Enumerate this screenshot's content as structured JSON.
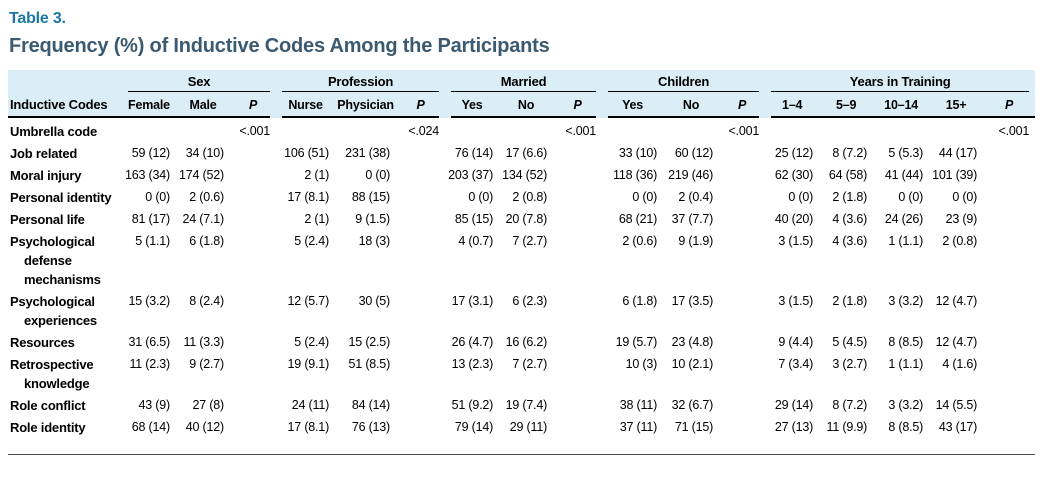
{
  "table_label": "Table 3.",
  "title": "Frequency (%) of Inductive Codes Among the Participants",
  "colors": {
    "table_label": "#1E78A7",
    "title": "#3A5A72",
    "header_band": "#DBEDF7",
    "rule": "#000000"
  },
  "table": {
    "row_header": "Inductive Codes",
    "groups": [
      {
        "label": "Sex",
        "cols": [
          "Female",
          "Male",
          "P"
        ]
      },
      {
        "label": "Profession",
        "cols": [
          "Nurse",
          "Physician",
          "P"
        ]
      },
      {
        "label": "Married",
        "cols": [
          "Yes",
          "No",
          "P"
        ]
      },
      {
        "label": "Children",
        "cols": [
          "Yes",
          "No",
          "P"
        ]
      },
      {
        "label": "Years in Training",
        "cols": [
          "1–4",
          "5–9",
          "10–14",
          "15+",
          "P"
        ]
      }
    ],
    "rows": [
      {
        "label": "Umbrella code",
        "cells": [
          "",
          "",
          "<.001",
          "",
          "",
          "<.024",
          "",
          "",
          "<.001",
          "",
          "",
          "<.001",
          "",
          "",
          "",
          "",
          "<.001"
        ]
      },
      {
        "label": "Job related",
        "cells": [
          "59 (12)",
          "34 (10)",
          "",
          "106 (51)",
          "231 (38)",
          "",
          "76 (14)",
          "17 (6.6)",
          "",
          "33 (10)",
          "60 (12)",
          "",
          "25 (12)",
          "8 (7.2)",
          "5 (5.3)",
          "44 (17)",
          ""
        ]
      },
      {
        "label": "Moral injury",
        "cells": [
          "163 (34)",
          "174 (52)",
          "",
          "2 (1)",
          "0 (0)",
          "",
          "203 (37)",
          "134 (52)",
          "",
          "118 (36)",
          "219 (46)",
          "",
          "62 (30)",
          "64 (58)",
          "41 (44)",
          "101 (39)",
          ""
        ]
      },
      {
        "label": "Personal identity",
        "cells": [
          "0 (0)",
          "2 (0.6)",
          "",
          "17 (8.1)",
          "88 (15)",
          "",
          "0 (0)",
          "2 (0.8)",
          "",
          "0 (0)",
          "2 (0.4)",
          "",
          "0 (0)",
          "2 (1.8)",
          "0 (0)",
          "0 (0)",
          ""
        ]
      },
      {
        "label": "Personal life",
        "cells": [
          "81 (17)",
          "24 (7.1)",
          "",
          "2 (1)",
          "9 (1.5)",
          "",
          "85 (15)",
          "20 (7.8)",
          "",
          "68 (21)",
          "37 (7.7)",
          "",
          "40 (20)",
          "4 (3.6)",
          "24 (26)",
          "23 (9)",
          ""
        ]
      },
      {
        "label": "Psychological defense mechanisms",
        "cells": [
          "5 (1.1)",
          "6 (1.8)",
          "",
          "5 (2.4)",
          "18 (3)",
          "",
          "4 (0.7)",
          "7 (2.7)",
          "",
          "2 (0.6)",
          "9 (1.9)",
          "",
          "3 (1.5)",
          "4 (3.6)",
          "1 (1.1)",
          "2 (0.8)",
          ""
        ]
      },
      {
        "label": "Psychological experiences",
        "cells": [
          "15 (3.2)",
          "8 (2.4)",
          "",
          "12 (5.7)",
          "30 (5)",
          "",
          "17 (3.1)",
          "6 (2.3)",
          "",
          "6 (1.8)",
          "17 (3.5)",
          "",
          "3 (1.5)",
          "2 (1.8)",
          "3 (3.2)",
          "12 (4.7)",
          ""
        ]
      },
      {
        "label": "Resources",
        "cells": [
          "31 (6.5)",
          "11 (3.3)",
          "",
          "5 (2.4)",
          "15 (2.5)",
          "",
          "26 (4.7)",
          "16 (6.2)",
          "",
          "19 (5.7)",
          "23 (4.8)",
          "",
          "9 (4.4)",
          "5 (4.5)",
          "8 (8.5)",
          "12 (4.7)",
          ""
        ]
      },
      {
        "label": "Retrospective knowledge",
        "cells": [
          "11 (2.3)",
          "9 (2.7)",
          "",
          "19 (9.1)",
          "51 (8.5)",
          "",
          "13 (2.3)",
          "7 (2.7)",
          "",
          "10 (3)",
          "10 (2.1)",
          "",
          "7 (3.4)",
          "3 (2.7)",
          "1 (1.1)",
          "4 (1.6)",
          ""
        ]
      },
      {
        "label": "Role conflict",
        "cells": [
          "43 (9)",
          "27 (8)",
          "",
          "24 (11)",
          "84 (14)",
          "",
          "51 (9.2)",
          "19 (7.4)",
          "",
          "38 (11)",
          "32 (6.7)",
          "",
          "29 (14)",
          "8 (7.2)",
          "3 (3.2)",
          "14 (5.5)",
          ""
        ]
      },
      {
        "label": "Role identity",
        "cells": [
          "68 (14)",
          "40 (12)",
          "",
          "17 (8.1)",
          "76 (13)",
          "",
          "79 (14)",
          "29 (11)",
          "",
          "37 (11)",
          "71 (15)",
          "",
          "27 (13)",
          "11 (9.9)",
          "8 (8.5)",
          "43 (17)",
          ""
        ]
      }
    ]
  }
}
